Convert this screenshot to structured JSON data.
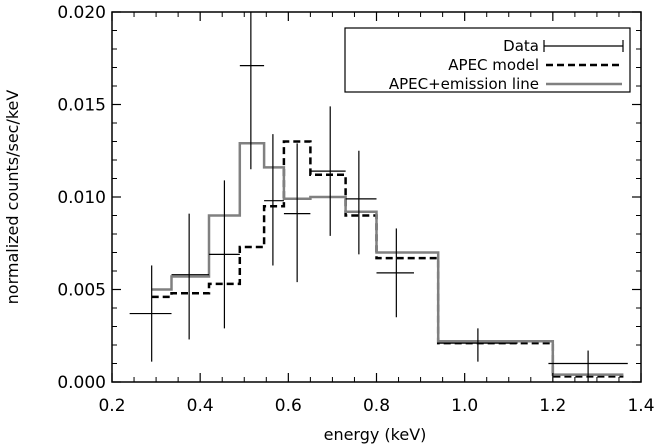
{
  "chart_data": {
    "type": "line",
    "xlabel": "energy (keV)",
    "ylabel": "normalized counts/sec/keV",
    "xlim": [
      0.2,
      1.4
    ],
    "ylim": [
      0.0,
      0.02
    ],
    "x_ticks": [
      "0.2",
      "0.4",
      "0.6",
      "0.8",
      "1.0",
      "1.2",
      "1.4"
    ],
    "y_ticks": [
      "0.000",
      "0.005",
      "0.010",
      "0.015",
      "0.020"
    ],
    "grid": false,
    "legend_position": "top-right",
    "series": [
      {
        "name": "Data",
        "style": "crosses",
        "color": "#000000",
        "points": [
          {
            "x": 0.29,
            "x_lo": 0.24,
            "x_hi": 0.335,
            "y": 0.0037,
            "y_lo": 0.0011,
            "y_hi": 0.0063
          },
          {
            "x": 0.375,
            "x_lo": 0.335,
            "x_hi": 0.42,
            "y": 0.0058,
            "y_lo": 0.0023,
            "y_hi": 0.0091
          },
          {
            "x": 0.455,
            "x_lo": 0.42,
            "x_hi": 0.49,
            "y": 0.0069,
            "y_lo": 0.0029,
            "y_hi": 0.0109
          },
          {
            "x": 0.515,
            "x_lo": 0.49,
            "x_hi": 0.545,
            "y": 0.0171,
            "y_lo": 0.0115,
            "y_hi": 0.0227
          },
          {
            "x": 0.565,
            "x_lo": 0.545,
            "x_hi": 0.59,
            "y": 0.0098,
            "y_lo": 0.0063,
            "y_hi": 0.0134
          },
          {
            "x": 0.62,
            "x_lo": 0.59,
            "x_hi": 0.65,
            "y": 0.0091,
            "y_lo": 0.0054,
            "y_hi": 0.0129
          },
          {
            "x": 0.695,
            "x_lo": 0.65,
            "x_hi": 0.73,
            "y": 0.0114,
            "y_lo": 0.0079,
            "y_hi": 0.0149
          },
          {
            "x": 0.76,
            "x_lo": 0.73,
            "x_hi": 0.8,
            "y": 0.0099,
            "y_lo": 0.0069,
            "y_hi": 0.0125
          },
          {
            "x": 0.845,
            "x_lo": 0.8,
            "x_hi": 0.885,
            "y": 0.0059,
            "y_lo": 0.0035,
            "y_hi": 0.0083
          },
          {
            "x": 1.03,
            "x_lo": 0.94,
            "x_hi": 1.12,
            "y": 0.0021,
            "y_lo": 0.0011,
            "y_hi": 0.0029
          },
          {
            "x": 1.28,
            "x_lo": 1.19,
            "x_hi": 1.37,
            "y": 0.001,
            "y_lo": 0.0,
            "y_hi": 0.0017
          }
        ]
      },
      {
        "name": "APEC model",
        "style": "dashed-step",
        "color": "#000000",
        "edges": [
          0.29,
          0.335,
          0.42,
          0.49,
          0.545,
          0.59,
          0.65,
          0.73,
          0.8,
          0.94,
          1.2,
          1.36
        ],
        "values": [
          0.0046,
          0.0048,
          0.0053,
          0.0073,
          0.0095,
          0.013,
          0.0112,
          0.009,
          0.0067,
          0.0021,
          0.0003
        ]
      },
      {
        "name": "APEC+emission line",
        "style": "solid-step",
        "color": "#808080",
        "edges": [
          0.29,
          0.335,
          0.42,
          0.49,
          0.545,
          0.59,
          0.65,
          0.73,
          0.8,
          0.94,
          1.2,
          1.36
        ],
        "values": [
          0.005,
          0.0057,
          0.009,
          0.0129,
          0.0116,
          0.0099,
          0.01,
          0.0092,
          0.007,
          0.0022,
          0.0004
        ]
      }
    ]
  }
}
